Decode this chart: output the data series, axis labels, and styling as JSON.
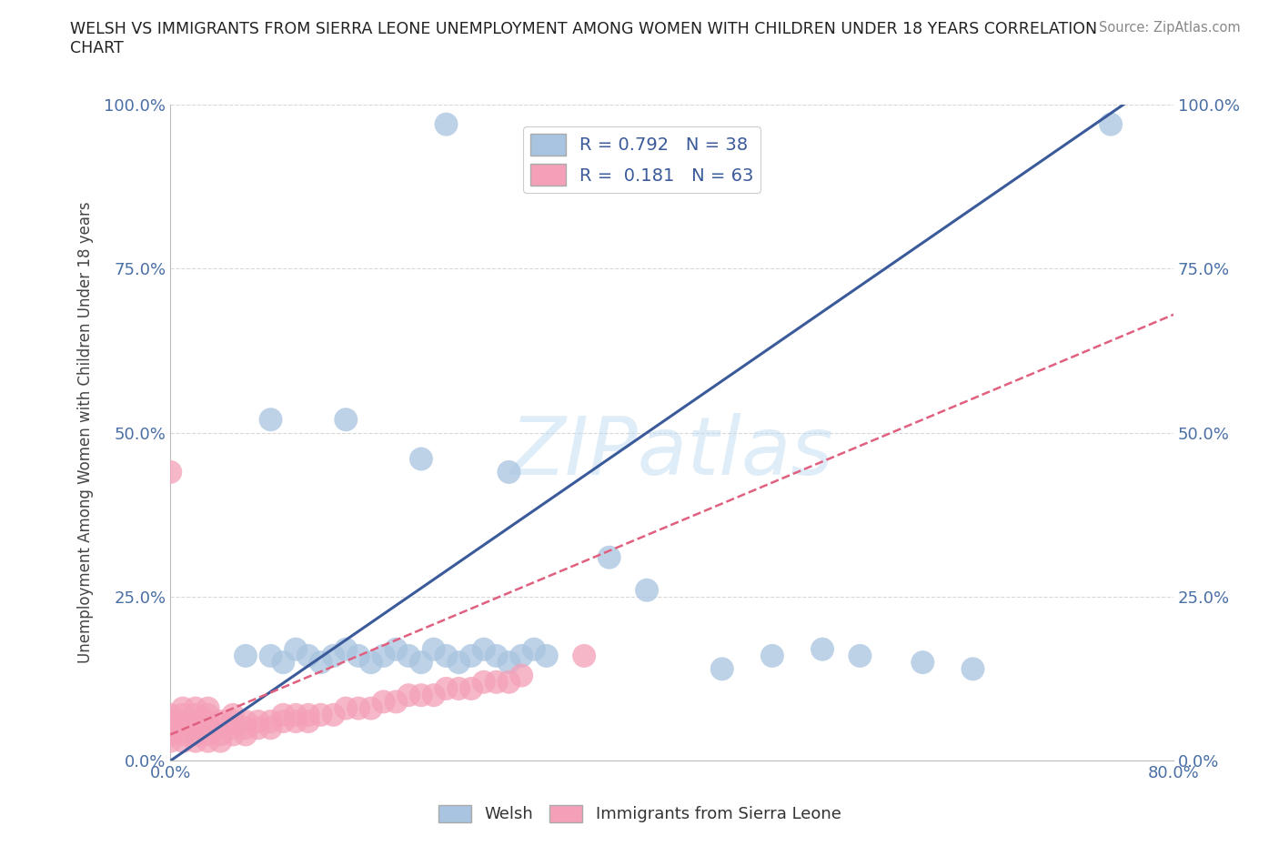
{
  "title": "WELSH VS IMMIGRANTS FROM SIERRA LEONE UNEMPLOYMENT AMONG WOMEN WITH CHILDREN UNDER 18 YEARS CORRELATION\nCHART",
  "source": "Source: ZipAtlas.com",
  "ylabel_text": "Unemployment Among Women with Children Under 18 years",
  "xlim": [
    0,
    0.8
  ],
  "ylim": [
    0,
    1.0
  ],
  "xticks": [
    0.0,
    0.2,
    0.4,
    0.6,
    0.8
  ],
  "xtick_labels": [
    "0.0%",
    "",
    "",
    "",
    "80.0%"
  ],
  "yticks": [
    0.0,
    0.25,
    0.5,
    0.75,
    1.0
  ],
  "ytick_labels": [
    "0.0%",
    "25.0%",
    "50.0%",
    "75.0%",
    "100.0%"
  ],
  "welsh_color": "#a8c4e0",
  "sierra_color": "#f4a0b8",
  "welsh_line_color": "#3a5a9a",
  "sierra_line_color": "#e06080",
  "R_welsh": 0.792,
  "N_welsh": 38,
  "R_sierra": 0.181,
  "N_sierra": 63,
  "watermark": "ZIPatlas",
  "background_color": "#ffffff",
  "grid_color": "#d8d8d8",
  "welsh_line_x": [
    0.0,
    0.76
  ],
  "welsh_line_y": [
    0.0,
    1.0
  ],
  "sierra_line_x": [
    0.0,
    0.8
  ],
  "sierra_line_y": [
    0.04,
    0.68
  ],
  "welsh_scatter": [
    [
      0.22,
      0.97
    ],
    [
      0.75,
      0.97
    ],
    [
      0.08,
      0.52
    ],
    [
      0.14,
      0.52
    ],
    [
      0.2,
      0.46
    ],
    [
      0.27,
      0.44
    ],
    [
      0.35,
      0.31
    ],
    [
      0.38,
      0.26
    ],
    [
      0.44,
      0.14
    ],
    [
      0.48,
      0.16
    ],
    [
      0.52,
      0.17
    ],
    [
      0.55,
      0.16
    ],
    [
      0.6,
      0.15
    ],
    [
      0.64,
      0.14
    ],
    [
      0.06,
      0.16
    ],
    [
      0.08,
      0.16
    ],
    [
      0.09,
      0.15
    ],
    [
      0.1,
      0.17
    ],
    [
      0.11,
      0.16
    ],
    [
      0.12,
      0.15
    ],
    [
      0.13,
      0.16
    ],
    [
      0.14,
      0.17
    ],
    [
      0.15,
      0.16
    ],
    [
      0.16,
      0.15
    ],
    [
      0.17,
      0.16
    ],
    [
      0.18,
      0.17
    ],
    [
      0.19,
      0.16
    ],
    [
      0.2,
      0.15
    ],
    [
      0.21,
      0.17
    ],
    [
      0.22,
      0.16
    ],
    [
      0.23,
      0.15
    ],
    [
      0.24,
      0.16
    ],
    [
      0.25,
      0.17
    ],
    [
      0.26,
      0.16
    ],
    [
      0.27,
      0.15
    ],
    [
      0.28,
      0.16
    ],
    [
      0.29,
      0.17
    ],
    [
      0.3,
      0.16
    ]
  ],
  "sierra_scatter": [
    [
      0.0,
      0.44
    ],
    [
      0.0,
      0.04
    ],
    [
      0.0,
      0.05
    ],
    [
      0.0,
      0.06
    ],
    [
      0.0,
      0.03
    ],
    [
      0.0,
      0.07
    ],
    [
      0.01,
      0.04
    ],
    [
      0.01,
      0.05
    ],
    [
      0.01,
      0.06
    ],
    [
      0.01,
      0.03
    ],
    [
      0.01,
      0.07
    ],
    [
      0.02,
      0.04
    ],
    [
      0.02,
      0.05
    ],
    [
      0.02,
      0.06
    ],
    [
      0.02,
      0.03
    ],
    [
      0.02,
      0.07
    ],
    [
      0.03,
      0.04
    ],
    [
      0.03,
      0.05
    ],
    [
      0.03,
      0.06
    ],
    [
      0.03,
      0.03
    ],
    [
      0.03,
      0.07
    ],
    [
      0.04,
      0.04
    ],
    [
      0.04,
      0.05
    ],
    [
      0.04,
      0.06
    ],
    [
      0.04,
      0.03
    ],
    [
      0.05,
      0.04
    ],
    [
      0.05,
      0.05
    ],
    [
      0.05,
      0.06
    ],
    [
      0.05,
      0.07
    ],
    [
      0.06,
      0.04
    ],
    [
      0.06,
      0.05
    ],
    [
      0.06,
      0.06
    ],
    [
      0.07,
      0.05
    ],
    [
      0.07,
      0.06
    ],
    [
      0.08,
      0.05
    ],
    [
      0.08,
      0.06
    ],
    [
      0.09,
      0.06
    ],
    [
      0.09,
      0.07
    ],
    [
      0.1,
      0.06
    ],
    [
      0.1,
      0.07
    ],
    [
      0.11,
      0.07
    ],
    [
      0.11,
      0.06
    ],
    [
      0.12,
      0.07
    ],
    [
      0.13,
      0.07
    ],
    [
      0.14,
      0.08
    ],
    [
      0.15,
      0.08
    ],
    [
      0.16,
      0.08
    ],
    [
      0.17,
      0.09
    ],
    [
      0.18,
      0.09
    ],
    [
      0.19,
      0.1
    ],
    [
      0.2,
      0.1
    ],
    [
      0.21,
      0.1
    ],
    [
      0.22,
      0.11
    ],
    [
      0.23,
      0.11
    ],
    [
      0.24,
      0.11
    ],
    [
      0.25,
      0.12
    ],
    [
      0.26,
      0.12
    ],
    [
      0.27,
      0.12
    ],
    [
      0.28,
      0.13
    ],
    [
      0.33,
      0.16
    ],
    [
      0.01,
      0.08
    ],
    [
      0.02,
      0.08
    ],
    [
      0.03,
      0.08
    ]
  ]
}
